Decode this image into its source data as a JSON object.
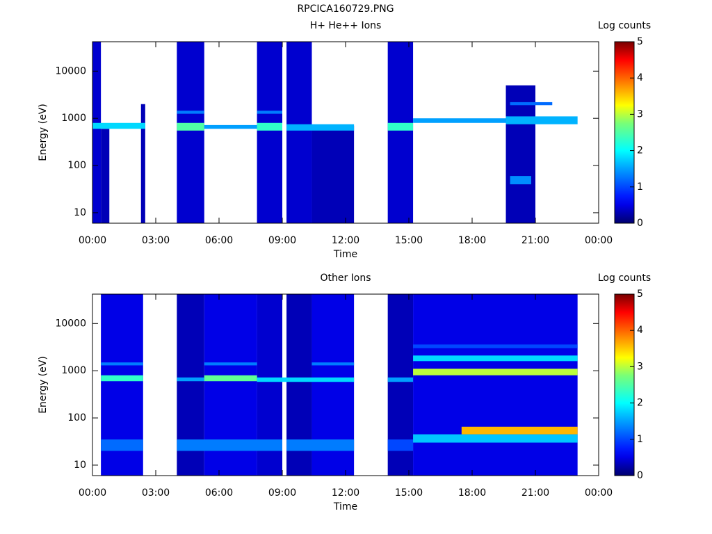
{
  "page_title": "RPCICA160729.PNG",
  "chart_data": [
    {
      "type": "heatmap",
      "title": "H+ He++ Ions",
      "xlabel": "Time",
      "ylabel": "Energy (eV)",
      "xlim": [
        0,
        24
      ],
      "xticks": [
        {
          "value": 0,
          "label": "00:00"
        },
        {
          "value": 3,
          "label": "03:00"
        },
        {
          "value": 6,
          "label": "06:00"
        },
        {
          "value": 9,
          "label": "09:00"
        },
        {
          "value": 12,
          "label": "12:00"
        },
        {
          "value": 15,
          "label": "15:00"
        },
        {
          "value": 18,
          "label": "18:00"
        },
        {
          "value": 21,
          "label": "21:00"
        },
        {
          "value": 24,
          "label": "00:00"
        }
      ],
      "ylim": [
        6,
        42000
      ],
      "yticks": [
        10,
        100,
        1000,
        10000
      ],
      "log_y": true,
      "colorbar": {
        "label": "Log counts",
        "clim": [
          0,
          5
        ],
        "ticks": [
          0,
          1,
          2,
          3,
          4,
          5
        ]
      },
      "cells": [
        [
          0,
          0.4,
          6,
          42000,
          0.4
        ],
        [
          0.4,
          0.8,
          6,
          600,
          0.3
        ],
        [
          2.3,
          2.5,
          6,
          2000,
          0.3
        ],
        [
          4.0,
          5.3,
          6,
          42000,
          0.4
        ],
        [
          7.8,
          9.0,
          6,
          42000,
          0.4
        ],
        [
          9.2,
          10.4,
          6,
          42000,
          0.4
        ],
        [
          10.4,
          12.4,
          6,
          700,
          0.3
        ],
        [
          14.0,
          15.2,
          6,
          42000,
          0.4
        ],
        [
          19.6,
          21.0,
          6,
          5000,
          0.3
        ],
        [
          0,
          2.5,
          600,
          800,
          1.8
        ],
        [
          4.0,
          5.3,
          550,
          800,
          2.5
        ],
        [
          5.3,
          7.8,
          600,
          720,
          1.5
        ],
        [
          7.8,
          9.0,
          550,
          800,
          2.3
        ],
        [
          9.2,
          12.4,
          550,
          750,
          1.6
        ],
        [
          14.0,
          15.2,
          550,
          800,
          2.3
        ],
        [
          15.2,
          19.6,
          800,
          1000,
          1.5
        ],
        [
          19.6,
          23.0,
          750,
          1100,
          1.6
        ],
        [
          19.8,
          20.8,
          40,
          60,
          1.4
        ],
        [
          4.0,
          5.3,
          1250,
          1450,
          1.3
        ],
        [
          7.8,
          9.0,
          1250,
          1450,
          1.3
        ],
        [
          19.8,
          21.8,
          1900,
          2200,
          1.2
        ]
      ]
    },
    {
      "type": "heatmap",
      "title": "Other Ions",
      "xlabel": "Time",
      "ylabel": "Energy (eV)",
      "xlim": [
        0,
        24
      ],
      "xticks": [
        {
          "value": 0,
          "label": "00:00"
        },
        {
          "value": 3,
          "label": "03:00"
        },
        {
          "value": 6,
          "label": "06:00"
        },
        {
          "value": 9,
          "label": "09:00"
        },
        {
          "value": 12,
          "label": "12:00"
        },
        {
          "value": 15,
          "label": "15:00"
        },
        {
          "value": 18,
          "label": "18:00"
        },
        {
          "value": 21,
          "label": "21:00"
        },
        {
          "value": 24,
          "label": "00:00"
        }
      ],
      "ylim": [
        6,
        42000
      ],
      "yticks": [
        10,
        100,
        1000,
        10000
      ],
      "log_y": true,
      "colorbar": {
        "label": "Log counts",
        "clim": [
          0,
          5
        ],
        "ticks": [
          0,
          1,
          2,
          3,
          4,
          5
        ]
      },
      "cells": [
        [
          0.4,
          2.4,
          6,
          42000,
          0.5
        ],
        [
          4.0,
          5.3,
          6,
          42000,
          0.3
        ],
        [
          5.3,
          7.8,
          6,
          42000,
          0.5
        ],
        [
          7.8,
          9.0,
          6,
          42000,
          0.4
        ],
        [
          9.2,
          10.4,
          6,
          42000,
          0.3
        ],
        [
          10.4,
          12.4,
          6,
          42000,
          0.5
        ],
        [
          14.0,
          15.2,
          6,
          42000,
          0.3
        ],
        [
          15.2,
          23.0,
          6,
          42000,
          0.5
        ],
        [
          0.4,
          2.4,
          20,
          35,
          1.2
        ],
        [
          4.0,
          9.0,
          20,
          35,
          1.3
        ],
        [
          9.2,
          12.4,
          20,
          35,
          1.3
        ],
        [
          14.0,
          15.2,
          20,
          35,
          1.0
        ],
        [
          15.2,
          23.0,
          30,
          45,
          1.7
        ],
        [
          17.5,
          23.0,
          45,
          65,
          3.6
        ],
        [
          0.4,
          2.4,
          600,
          800,
          2.3
        ],
        [
          4.0,
          5.3,
          600,
          720,
          1.5
        ],
        [
          5.3,
          7.8,
          600,
          800,
          2.6
        ],
        [
          7.8,
          12.4,
          580,
          720,
          1.8
        ],
        [
          14.0,
          15.2,
          580,
          720,
          1.5
        ],
        [
          15.2,
          23.0,
          800,
          1100,
          3.0
        ],
        [
          15.2,
          23.0,
          1600,
          2100,
          1.8
        ],
        [
          15.2,
          23.0,
          3000,
          3600,
          1.0
        ],
        [
          0.4,
          2.4,
          1300,
          1500,
          1.3
        ],
        [
          5.3,
          7.8,
          1300,
          1500,
          1.3
        ],
        [
          10.4,
          12.4,
          1300,
          1500,
          1.3
        ]
      ]
    }
  ]
}
